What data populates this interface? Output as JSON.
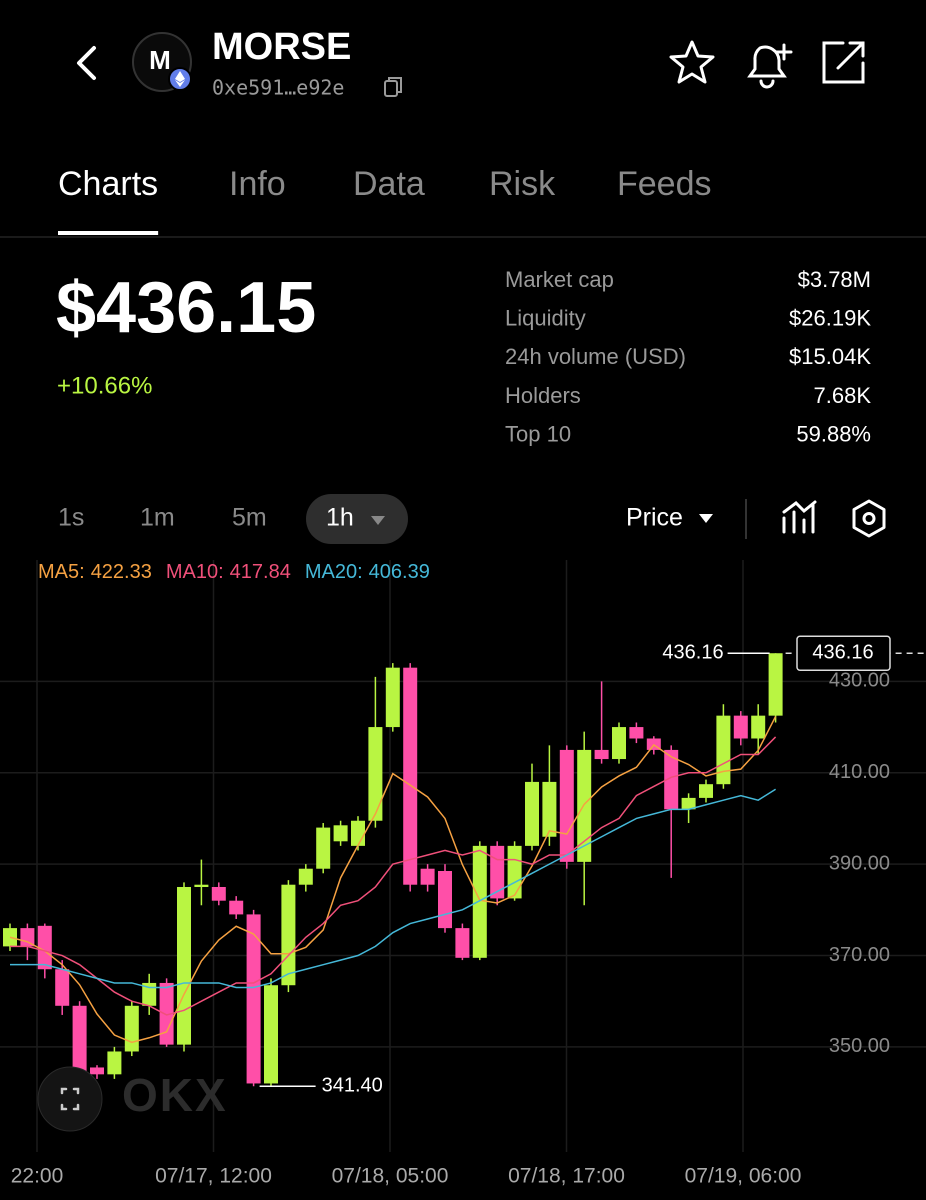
{
  "header": {
    "title": "MORSE",
    "logo": "M",
    "address": "0xe591…e92e"
  },
  "tabs": [
    "Charts",
    "Info",
    "Data",
    "Risk",
    "Feeds"
  ],
  "active_tab": 0,
  "price": "$436.15",
  "change": "+10.66%",
  "stats": [
    {
      "label": "Market cap",
      "value": "$3.78M"
    },
    {
      "label": "Liquidity",
      "value": "$26.19K"
    },
    {
      "label": "24h volume (USD)",
      "value": "$15.04K"
    },
    {
      "label": "Holders",
      "value": "7.68K"
    },
    {
      "label": "Top 10",
      "value": "59.88%"
    }
  ],
  "timeframes": [
    "1s",
    "1m",
    "5m",
    "1h"
  ],
  "active_timeframe": 3,
  "price_mode": "Price",
  "watermark": "OKX",
  "chart_data": {
    "type": "candlestick",
    "x_labels": [
      "22:00",
      "07/17, 12:00",
      "07/18, 05:00",
      "07/18, 17:00",
      "07/19, 06:00"
    ],
    "open": [
      372,
      376,
      376.5,
      367,
      359,
      345.5,
      344,
      349,
      359,
      364,
      350.5,
      385,
      385,
      382,
      379,
      342,
      363.5,
      385.5,
      389,
      395,
      394,
      399.5,
      420,
      433,
      389,
      388.5,
      376,
      369.5,
      394,
      382.5,
      394,
      396,
      415,
      390.5,
      415,
      413,
      420,
      417.5,
      415,
      402,
      404.5,
      407.5,
      422.5,
      417.5,
      422.5
    ],
    "high": [
      377,
      377,
      377,
      369,
      360,
      346,
      350,
      360,
      366,
      365,
      386,
      391,
      386,
      383,
      380,
      365,
      386.5,
      390,
      399,
      399.5,
      400.5,
      431,
      434,
      434,
      390,
      390,
      377,
      395,
      395,
      395,
      412,
      416,
      416,
      419,
      430,
      421,
      421,
      418,
      416,
      405.5,
      408.5,
      425,
      423.5,
      425,
      436.16
    ],
    "low": [
      371,
      369,
      365,
      357,
      343,
      343,
      343,
      348,
      357,
      350,
      349,
      381,
      381,
      378,
      341.4,
      341.5,
      362,
      384,
      388,
      394,
      393,
      398,
      419,
      384,
      384,
      375,
      369,
      369,
      381,
      382,
      393,
      394,
      389,
      381,
      412,
      412,
      416.5,
      414,
      387,
      399,
      403.5,
      406.5,
      416,
      414,
      421
    ],
    "close": [
      376,
      372,
      367,
      359,
      344,
      344,
      349,
      359,
      364,
      350.5,
      385,
      385.5,
      382,
      379,
      342,
      363.5,
      385.5,
      389,
      398,
      398.5,
      399.5,
      420,
      433,
      385.5,
      385.5,
      376,
      369.5,
      394,
      382.5,
      394,
      408,
      408,
      390.5,
      415,
      413,
      420,
      417.5,
      415,
      402,
      404.5,
      407.5,
      422.5,
      417.5,
      422.5,
      436.16
    ],
    "up_color": "#b9f542",
    "down_color": "#ff4fa8",
    "ma": [
      {
        "name": "MA5",
        "color": "#f5a142",
        "values": [
          374,
          373,
          371,
          368,
          363.6,
          357.2,
          352.6,
          351,
          352,
          353.3,
          361.5,
          368.8,
          373.4,
          376.4,
          374.7,
          370.4,
          370.4,
          371.8,
          375.6,
          387,
          394.1,
          401,
          409.8,
          407.3,
          404.7,
          400,
          389.9,
          382.1,
          381.5,
          383.2,
          389.6,
          397.3,
          396.6,
          403.1,
          406.9,
          409.3,
          411.2,
          416.1,
          413.5,
          411.8,
          409.3,
          410.3,
          410.8,
          414.9,
          422.33
        ]
      },
      {
        "name": "MA10",
        "color": "#f0507a",
        "values": [
          372,
          372,
          371,
          370,
          368,
          365,
          362,
          360,
          359,
          357,
          358,
          360,
          362,
          364,
          364,
          366,
          370,
          374,
          377,
          381,
          382,
          385,
          390,
          391,
          392,
          393,
          392,
          393,
          391,
          391,
          390,
          392,
          392,
          395,
          398,
          400,
          405,
          407,
          409,
          410,
          410,
          412,
          414,
          414,
          417.84
        ]
      },
      {
        "name": "MA20",
        "color": "#45b8d8",
        "values": [
          368,
          368,
          368,
          367,
          366,
          365,
          364,
          364,
          363,
          363,
          364,
          364,
          364,
          363,
          363,
          364,
          366,
          367,
          368,
          369,
          370,
          372,
          375,
          377,
          378,
          379,
          380,
          382,
          384,
          386,
          388,
          390,
          392,
          394,
          396,
          398,
          400,
          401,
          402,
          402,
          403,
          404,
          405,
          404,
          406.39
        ]
      }
    ],
    "extremes": {
      "high": {
        "value": 436.16,
        "label": "436.16"
      },
      "low": {
        "value": 341.4,
        "label": "341.40"
      }
    },
    "ylim": [
      327,
      450
    ],
    "yticks": [
      {
        "value": 350,
        "label": "350.00"
      },
      {
        "value": 370,
        "label": "370.00"
      },
      {
        "value": 390,
        "label": "390.00"
      },
      {
        "value": 410,
        "label": "410.00"
      },
      {
        "value": 430,
        "label": "430.00"
      }
    ],
    "grid": true
  }
}
